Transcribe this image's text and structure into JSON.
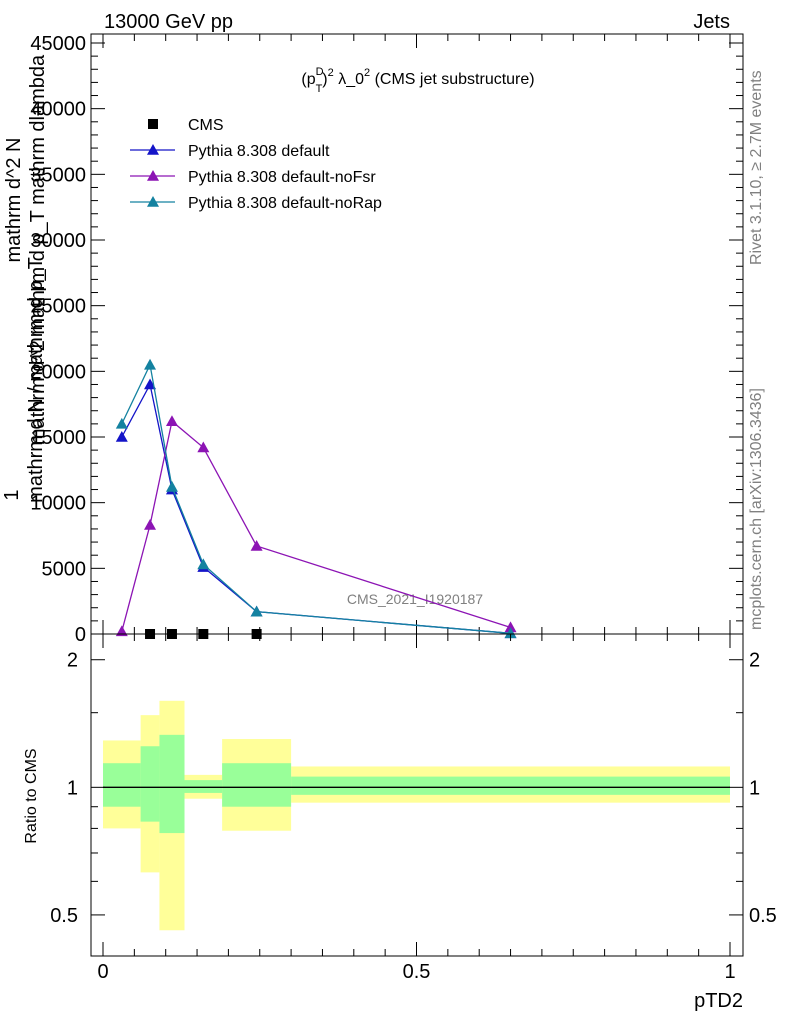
{
  "header": {
    "left": "13000 GeV pp",
    "right": "Jets"
  },
  "side_labels": {
    "rivet": "Rivet 3.1.10, ≥ 2.7M events",
    "mcplots": "mcplots.cern.ch [arXiv:1306.3436]"
  },
  "watermark": "CMS_2021_I1920187",
  "chart_data": [
    {
      "type": "line",
      "title": "(p_T^D)^2 λ_0^2 (CMS jet substructure)",
      "title_parts": {
        "p": "(p",
        "sup_d": "D",
        "sub_t": "T",
        "close": ")",
        "sup_2": "2",
        "rest": " λ_0",
        "sup_2b": "2",
        "tail": " (CMS jet substructure)"
      },
      "ylabel_lines": [
        "1",
        "mathrm d N / mathrm d p_T",
        "mathrm d^2 mathrm d p_T mathrm dlambda",
        "mathrm d^2 N"
      ],
      "xlim": [
        0,
        1
      ],
      "ylim": [
        0,
        45000
      ],
      "y_ticks": [
        0,
        5000,
        10000,
        15000,
        20000,
        25000,
        30000,
        35000,
        40000,
        45000
      ],
      "y_tick_labels": [
        "0",
        "5000",
        "10000",
        "15000",
        "20000",
        "25000",
        "30000",
        "35000",
        "40000",
        "45000"
      ],
      "legend_placement": "top-left",
      "series": [
        {
          "name": "CMS",
          "color": "#000000",
          "marker": "square",
          "x": [
            0.075,
            0.11,
            0.16,
            0.245
          ],
          "y": [
            0,
            0,
            0,
            0
          ]
        },
        {
          "name": "Pythia 8.308 default",
          "color": "#1414c8",
          "marker": "triangle",
          "x": [
            0.03,
            0.075,
            0.11,
            0.16,
            0.245,
            0.65
          ],
          "y": [
            15000,
            19000,
            11000,
            5100,
            1700,
            50
          ]
        },
        {
          "name": "Pythia 8.308 default-noFsr",
          "color": "#8c14b4",
          "marker": "triangle",
          "x": [
            0.03,
            0.075,
            0.11,
            0.16,
            0.245,
            0.65
          ],
          "y": [
            200,
            8300,
            16200,
            14200,
            6700,
            500
          ]
        },
        {
          "name": "Pythia 8.308 default-noRap",
          "color": "#1482a0",
          "marker": "triangle",
          "x": [
            0.03,
            0.075,
            0.11,
            0.16,
            0.245,
            0.65
          ],
          "y": [
            16000,
            20500,
            11200,
            5300,
            1700,
            50
          ]
        }
      ]
    },
    {
      "type": "area",
      "ylabel": "Ratio to CMS",
      "xlabel": "pTD2",
      "xlim": [
        0,
        1
      ],
      "ylim": [
        0.4,
        2.3
      ],
      "log_y": true,
      "x_ticks": [
        0,
        0.5,
        1
      ],
      "x_tick_labels": [
        "0",
        "0.5",
        "1"
      ],
      "y_ticks": [
        0.5,
        1,
        2
      ],
      "y_tick_labels": [
        "0.5",
        "1",
        "2"
      ],
      "reference_line": 1,
      "bands": [
        {
          "x0": 0.0,
          "x1": 0.06,
          "green": [
            0.9,
            1.14
          ],
          "yellow": [
            0.8,
            1.29
          ]
        },
        {
          "x0": 0.06,
          "x1": 0.09,
          "green": [
            0.83,
            1.25
          ],
          "yellow": [
            0.63,
            1.48
          ]
        },
        {
          "x0": 0.09,
          "x1": 0.13,
          "green": [
            0.78,
            1.33
          ],
          "yellow": [
            0.46,
            1.6
          ]
        },
        {
          "x0": 0.13,
          "x1": 0.19,
          "green": [
            0.97,
            1.04
          ],
          "yellow": [
            0.94,
            1.07
          ]
        },
        {
          "x0": 0.19,
          "x1": 0.3,
          "green": [
            0.9,
            1.14
          ],
          "yellow": [
            0.79,
            1.3
          ]
        },
        {
          "x0": 0.3,
          "x1": 1.0,
          "green": [
            0.96,
            1.06
          ],
          "yellow": [
            0.92,
            1.12
          ]
        }
      ]
    }
  ]
}
